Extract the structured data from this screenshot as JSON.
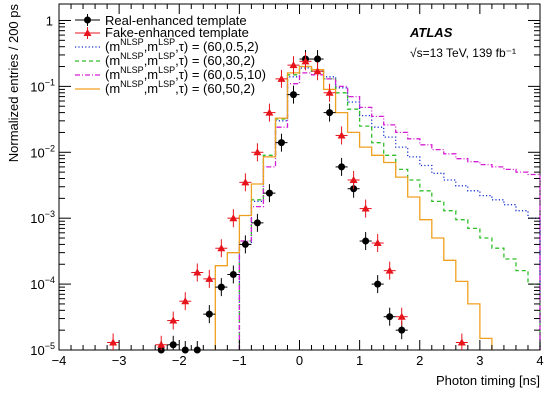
{
  "chart_data": {
    "type": "histogram",
    "ylabel": "Normalized entries / 200 ps",
    "xlabel": "Photon timing [ns]",
    "xlim": [
      -4,
      4
    ],
    "ylim_log10": [
      -5,
      0.25
    ],
    "yscale": "log",
    "grid": false,
    "legend_position": "top-left",
    "atlas_label": "ATLAS",
    "energy_lumi": "√s=13 TeV, 139 fb⁻¹",
    "x_ticks": [
      "−4",
      "−3",
      "−2",
      "−1",
      "0",
      "1",
      "2",
      "3",
      "4"
    ],
    "x_tick_values": [
      -4,
      -3,
      -2,
      -1,
      0,
      1,
      2,
      3,
      4
    ],
    "y_ticks": [
      {
        "exp": -5,
        "label": "10",
        "sup": "−5"
      },
      {
        "exp": -4,
        "label": "10",
        "sup": "−4"
      },
      {
        "exp": -3,
        "label": "10",
        "sup": "−3"
      },
      {
        "exp": -2,
        "label": "10",
        "sup": "−2"
      },
      {
        "exp": -1,
        "label": "10",
        "sup": "−1"
      },
      {
        "exp": 0,
        "label": "1",
        "sup": ""
      }
    ],
    "points": [
      {
        "name": "Real-enhanced template",
        "color": "#000000",
        "marker": "circle",
        "x": [
          -2.3,
          -2.1,
          -1.9,
          -1.7,
          -1.5,
          -1.3,
          -1.1,
          -0.9,
          -0.7,
          -0.5,
          -0.3,
          -0.1,
          0.1,
          0.3,
          0.5,
          0.7,
          0.9,
          1.1,
          1.3,
          1.5,
          1.7
        ],
        "y": [
          1e-05,
          1.2e-05,
          1e-05,
          1e-05,
          3.5e-05,
          9e-05,
          0.00014,
          0.0004,
          0.00085,
          0.0024,
          0.014,
          0.075,
          0.26,
          0.26,
          0.04,
          0.006,
          0.0028,
          0.00045,
          0.0001,
          3.2e-05,
          2e-05
        ]
      },
      {
        "name": "Fake-enhanced template",
        "color": "#e8141c",
        "marker": "triangle",
        "x": [
          -3.1,
          -2.3,
          -2.1,
          -1.9,
          -1.7,
          -1.5,
          -1.3,
          -1.1,
          -0.9,
          -0.7,
          -0.5,
          -0.3,
          -0.1,
          0.1,
          0.3,
          0.5,
          0.7,
          0.9,
          1.1,
          1.3,
          1.5,
          1.7,
          2.7
        ],
        "y": [
          1.3e-05,
          1.2e-05,
          2.8e-05,
          5.5e-05,
          0.00015,
          0.00012,
          0.00035,
          0.001,
          0.0035,
          0.01,
          0.04,
          0.13,
          0.21,
          0.24,
          0.17,
          0.08,
          0.018,
          0.0038,
          0.0014,
          0.00042,
          0.00016,
          3.2e-05,
          1.3e-05
        ]
      }
    ],
    "series": [
      {
        "name": "(m^NLSP,m^LSP,τ) = (60,0.5,2)",
        "color": "#1530d0",
        "dash": "1.2,2.2",
        "edges": [
          -1.0,
          -0.8,
          -0.6,
          -0.4,
          -0.2,
          0.0,
          0.2,
          0.4,
          0.6,
          0.8,
          1.0,
          1.2,
          1.4,
          1.6,
          1.8,
          2.0,
          2.2,
          2.4,
          2.6,
          2.8,
          3.0,
          3.2,
          3.4,
          3.6,
          3.8,
          4.0
        ],
        "values": [
          0.0004,
          0.0018,
          0.0085,
          0.03,
          0.14,
          0.19,
          0.17,
          0.14,
          0.095,
          0.058,
          0.036,
          0.024,
          0.017,
          0.012,
          0.0085,
          0.0063,
          0.0048,
          0.0038,
          0.0031,
          0.0026,
          0.0022,
          0.0019,
          0.0016,
          0.0013,
          0.001
        ]
      },
      {
        "name": "(m^NLSP,m^LSP,τ) = (60,30,2)",
        "color": "#2fbf2a",
        "dash": "4,3",
        "edges": [
          -1.0,
          -0.8,
          -0.6,
          -0.4,
          -0.2,
          0.0,
          0.2,
          0.4,
          0.6,
          0.8,
          1.0,
          1.2,
          1.4,
          1.6,
          1.8,
          2.0,
          2.2,
          2.4,
          2.6,
          2.8,
          3.0,
          3.2,
          3.4,
          3.6,
          3.8,
          4.0
        ],
        "values": [
          0.00045,
          0.0019,
          0.009,
          0.032,
          0.15,
          0.2,
          0.17,
          0.13,
          0.08,
          0.045,
          0.025,
          0.014,
          0.009,
          0.0055,
          0.0038,
          0.0026,
          0.0018,
          0.0013,
          0.00095,
          0.0007,
          0.0005,
          0.00035,
          0.00024,
          0.00016,
          0.0001
        ]
      },
      {
        "name": "(m^NLSP,m^LSP,τ) = (60,0.5,10)",
        "color": "#d41ed4",
        "dash": "5,2,1,2",
        "edges": [
          -1.0,
          -0.8,
          -0.6,
          -0.4,
          -0.2,
          0.0,
          0.2,
          0.4,
          0.6,
          0.8,
          1.0,
          1.2,
          1.4,
          1.6,
          1.8,
          2.0,
          2.2,
          2.4,
          2.6,
          2.8,
          3.0,
          3.2,
          3.4,
          3.6,
          3.8,
          4.0
        ],
        "values": [
          0.00045,
          0.0015,
          0.006,
          0.024,
          0.11,
          0.16,
          0.15,
          0.13,
          0.1,
          0.07,
          0.048,
          0.035,
          0.026,
          0.02,
          0.016,
          0.013,
          0.011,
          0.0095,
          0.008,
          0.0072,
          0.0065,
          0.006,
          0.0055,
          0.005,
          0.0046
        ]
      },
      {
        "name": "(m^NLSP,m^LSP,τ) = (60,50,2)",
        "color": "#f0a020",
        "dash": "",
        "edges": [
          -1.4,
          -1.2,
          -1.0,
          -0.8,
          -0.6,
          -0.4,
          -0.2,
          0.0,
          0.2,
          0.4,
          0.6,
          0.8,
          1.0,
          1.2,
          1.4,
          1.6,
          1.8,
          2.0,
          2.2,
          2.4,
          2.6,
          2.8,
          3.0,
          3.2
        ],
        "values": [
          0.00019,
          0.0003,
          0.0011,
          0.0033,
          0.0085,
          0.033,
          0.16,
          0.2,
          0.18,
          0.09,
          0.04,
          0.02,
          0.012,
          0.009,
          0.007,
          0.0042,
          0.0021,
          0.00095,
          0.0005,
          0.00023,
          0.00011,
          5e-05,
          1.5e-05
        ]
      }
    ]
  }
}
